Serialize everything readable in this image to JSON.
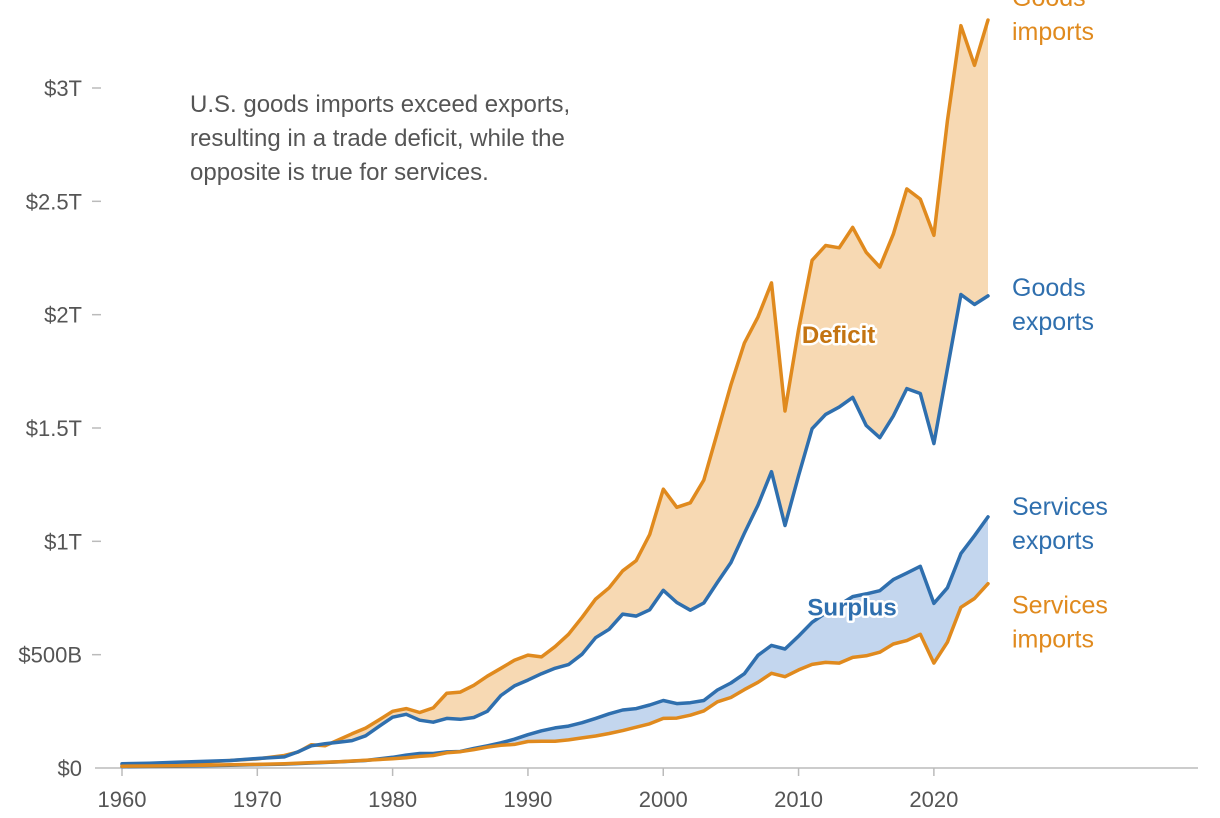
{
  "colors": {
    "orange": "#E08A1E",
    "blue": "#2F6FAE",
    "deficit_fill": "#F7D9B3",
    "surplus_fill": "#C3D6EE",
    "axis": "#BBBBBB",
    "text": "#555555",
    "deficit_label": "#C47411"
  },
  "chart_data": {
    "type": "line",
    "title": "",
    "annotation": [
      "U.S. goods imports exceed exports,",
      "resulting in a trade deficit, while the",
      "opposite is true for services."
    ],
    "xlabel": "",
    "ylabel": "",
    "xlim": [
      1956,
      2040
    ],
    "ylim": [
      0,
      3300
    ],
    "y_ticks": [
      {
        "value": 0,
        "label": "$0"
      },
      {
        "value": 500,
        "label": "$500B"
      },
      {
        "value": 1000,
        "label": "$1T"
      },
      {
        "value": 1500,
        "label": "$1.5T"
      },
      {
        "value": 2000,
        "label": "$2T"
      },
      {
        "value": 2500,
        "label": "$2.5T"
      },
      {
        "value": 3000,
        "label": "$3T"
      }
    ],
    "x_ticks": [
      {
        "value": 1960,
        "label": "1960"
      },
      {
        "value": 1970,
        "label": "1970"
      },
      {
        "value": 1980,
        "label": "1980"
      },
      {
        "value": 1990,
        "label": "1990"
      },
      {
        "value": 2000,
        "label": "2000"
      },
      {
        "value": 2010,
        "label": "2010"
      },
      {
        "value": 2020,
        "label": "2020"
      }
    ],
    "units": "billions of USD",
    "areas": [
      {
        "name": "Deficit",
        "upper": "Goods imports",
        "lower": "Goods exports",
        "label": "Deficit",
        "label_at": [
          2010,
          1875
        ]
      },
      {
        "name": "Surplus",
        "upper": "Services exports",
        "lower": "Services imports",
        "label": "Surplus",
        "label_at": [
          2011,
          672
        ]
      }
    ],
    "series": [
      {
        "name": "Goods imports",
        "label": [
          "Goods",
          "imports"
        ],
        "color": "orange",
        "points": [
          [
            1960,
            15
          ],
          [
            1962,
            16
          ],
          [
            1964,
            19
          ],
          [
            1966,
            25
          ],
          [
            1968,
            33
          ],
          [
            1970,
            40
          ],
          [
            1972,
            55
          ],
          [
            1973,
            70
          ],
          [
            1974,
            103
          ],
          [
            1975,
            98
          ],
          [
            1976,
            124
          ],
          [
            1977,
            151
          ],
          [
            1978,
            176
          ],
          [
            1979,
            212
          ],
          [
            1980,
            250
          ],
          [
            1981,
            262
          ],
          [
            1982,
            245
          ],
          [
            1983,
            265
          ],
          [
            1984,
            330
          ],
          [
            1985,
            335
          ],
          [
            1986,
            365
          ],
          [
            1987,
            405
          ],
          [
            1988,
            440
          ],
          [
            1989,
            475
          ],
          [
            1990,
            498
          ],
          [
            1991,
            490
          ],
          [
            1992,
            535
          ],
          [
            1993,
            590
          ],
          [
            1994,
            665
          ],
          [
            1995,
            745
          ],
          [
            1996,
            795
          ],
          [
            1997,
            870
          ],
          [
            1998,
            915
          ],
          [
            1999,
            1030
          ],
          [
            2000,
            1230
          ],
          [
            2001,
            1150
          ],
          [
            2002,
            1170
          ],
          [
            2003,
            1270
          ],
          [
            2004,
            1480
          ],
          [
            2005,
            1690
          ],
          [
            2006,
            1875
          ],
          [
            2007,
            1990
          ],
          [
            2008,
            2140
          ],
          [
            2009,
            1575
          ],
          [
            2010,
            1935
          ],
          [
            2011,
            2240
          ],
          [
            2012,
            2305
          ],
          [
            2013,
            2295
          ],
          [
            2014,
            2385
          ],
          [
            2015,
            2275
          ],
          [
            2016,
            2210
          ],
          [
            2017,
            2355
          ],
          [
            2018,
            2555
          ],
          [
            2019,
            2510
          ],
          [
            2020,
            2350
          ],
          [
            2021,
            2855
          ],
          [
            2022,
            3275
          ],
          [
            2023,
            3100
          ],
          [
            2024,
            3300
          ]
        ]
      },
      {
        "name": "Goods exports",
        "label": [
          "Goods",
          "exports"
        ],
        "color": "blue",
        "points": [
          [
            1960,
            19
          ],
          [
            1962,
            21
          ],
          [
            1964,
            25
          ],
          [
            1966,
            29
          ],
          [
            1968,
            33
          ],
          [
            1970,
            42
          ],
          [
            1972,
            49
          ],
          [
            1973,
            71
          ],
          [
            1974,
            98
          ],
          [
            1975,
            107
          ],
          [
            1976,
            114
          ],
          [
            1977,
            121
          ],
          [
            1978,
            142
          ],
          [
            1979,
            184
          ],
          [
            1980,
            224
          ],
          [
            1981,
            237
          ],
          [
            1982,
            211
          ],
          [
            1983,
            202
          ],
          [
            1984,
            219
          ],
          [
            1985,
            215
          ],
          [
            1986,
            223
          ],
          [
            1987,
            250
          ],
          [
            1988,
            320
          ],
          [
            1989,
            362
          ],
          [
            1990,
            388
          ],
          [
            1991,
            416
          ],
          [
            1992,
            440
          ],
          [
            1993,
            456
          ],
          [
            1994,
            502
          ],
          [
            1995,
            575
          ],
          [
            1996,
            612
          ],
          [
            1997,
            679
          ],
          [
            1998,
            670
          ],
          [
            1999,
            698
          ],
          [
            2000,
            784
          ],
          [
            2001,
            730
          ],
          [
            2002,
            696
          ],
          [
            2003,
            728
          ],
          [
            2004,
            819
          ],
          [
            2005,
            906
          ],
          [
            2006,
            1036
          ],
          [
            2007,
            1160
          ],
          [
            2008,
            1307
          ],
          [
            2009,
            1070
          ],
          [
            2010,
            1290
          ],
          [
            2011,
            1497
          ],
          [
            2012,
            1560
          ],
          [
            2013,
            1592
          ],
          [
            2014,
            1635
          ],
          [
            2015,
            1511
          ],
          [
            2016,
            1457
          ],
          [
            2017,
            1553
          ],
          [
            2018,
            1674
          ],
          [
            2019,
            1652
          ],
          [
            2020,
            1431
          ],
          [
            2021,
            1761
          ],
          [
            2022,
            2089
          ],
          [
            2023,
            2045
          ],
          [
            2024,
            2083
          ]
        ]
      },
      {
        "name": "Services exports",
        "label": [
          "Services",
          "exports"
        ],
        "color": "blue",
        "points": [
          [
            1960,
            6
          ],
          [
            1962,
            7
          ],
          [
            1964,
            8
          ],
          [
            1966,
            10
          ],
          [
            1968,
            12
          ],
          [
            1970,
            15
          ],
          [
            1972,
            17
          ],
          [
            1974,
            22
          ],
          [
            1976,
            27
          ],
          [
            1978,
            33
          ],
          [
            1980,
            47
          ],
          [
            1981,
            57
          ],
          [
            1982,
            64
          ],
          [
            1983,
            64
          ],
          [
            1984,
            71
          ],
          [
            1985,
            73
          ],
          [
            1986,
            86
          ],
          [
            1987,
            98
          ],
          [
            1988,
            111
          ],
          [
            1989,
            127
          ],
          [
            1990,
            147
          ],
          [
            1991,
            164
          ],
          [
            1992,
            177
          ],
          [
            1993,
            185
          ],
          [
            1994,
            200
          ],
          [
            1995,
            219
          ],
          [
            1996,
            239
          ],
          [
            1997,
            256
          ],
          [
            1998,
            262
          ],
          [
            1999,
            278
          ],
          [
            2000,
            298
          ],
          [
            2001,
            284
          ],
          [
            2002,
            288
          ],
          [
            2003,
            298
          ],
          [
            2004,
            344
          ],
          [
            2005,
            375
          ],
          [
            2006,
            416
          ],
          [
            2007,
            497
          ],
          [
            2008,
            541
          ],
          [
            2009,
            525
          ],
          [
            2010,
            582
          ],
          [
            2011,
            643
          ],
          [
            2012,
            684
          ],
          [
            2013,
            719
          ],
          [
            2014,
            756
          ],
          [
            2015,
            768
          ],
          [
            2016,
            782
          ],
          [
            2017,
            831
          ],
          [
            2018,
            860
          ],
          [
            2019,
            890
          ],
          [
            2020,
            726
          ],
          [
            2021,
            795
          ],
          [
            2022,
            946
          ],
          [
            2023,
            1025
          ],
          [
            2024,
            1108
          ]
        ]
      },
      {
        "name": "Services imports",
        "label": [
          "Services",
          "imports"
        ],
        "color": "orange",
        "points": [
          [
            1960,
            8
          ],
          [
            1962,
            9
          ],
          [
            1964,
            10
          ],
          [
            1966,
            12
          ],
          [
            1968,
            14
          ],
          [
            1970,
            16
          ],
          [
            1972,
            19
          ],
          [
            1974,
            24
          ],
          [
            1976,
            28
          ],
          [
            1978,
            34
          ],
          [
            1980,
            41
          ],
          [
            1981,
            45
          ],
          [
            1982,
            51
          ],
          [
            1983,
            55
          ],
          [
            1984,
            67
          ],
          [
            1985,
            72
          ],
          [
            1986,
            81
          ],
          [
            1987,
            92
          ],
          [
            1988,
            100
          ],
          [
            1989,
            104
          ],
          [
            1990,
            117
          ],
          [
            1991,
            118
          ],
          [
            1992,
            118
          ],
          [
            1993,
            124
          ],
          [
            1994,
            133
          ],
          [
            1995,
            141
          ],
          [
            1996,
            152
          ],
          [
            1997,
            165
          ],
          [
            1998,
            180
          ],
          [
            1999,
            195
          ],
          [
            2000,
            219
          ],
          [
            2001,
            220
          ],
          [
            2002,
            233
          ],
          [
            2003,
            252
          ],
          [
            2004,
            292
          ],
          [
            2005,
            311
          ],
          [
            2006,
            346
          ],
          [
            2007,
            378
          ],
          [
            2008,
            418
          ],
          [
            2009,
            403
          ],
          [
            2010,
            433
          ],
          [
            2011,
            457
          ],
          [
            2012,
            466
          ],
          [
            2013,
            463
          ],
          [
            2014,
            488
          ],
          [
            2015,
            495
          ],
          [
            2016,
            511
          ],
          [
            2017,
            547
          ],
          [
            2018,
            562
          ],
          [
            2019,
            590
          ],
          [
            2020,
            463
          ],
          [
            2021,
            555
          ],
          [
            2022,
            709
          ],
          [
            2023,
            748
          ],
          [
            2024,
            813
          ]
        ]
      }
    ]
  }
}
